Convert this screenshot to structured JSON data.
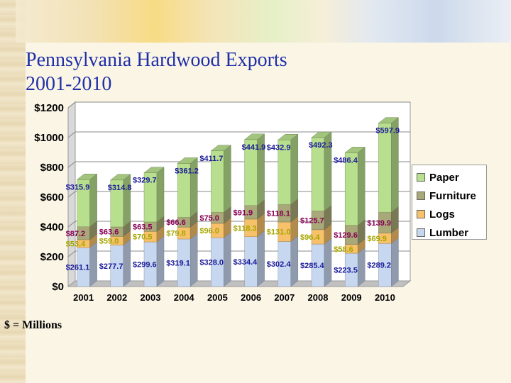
{
  "title": [
    "Pennsylvania Hardwood Exports",
    "2001-2010"
  ],
  "footnote": "$ = Millions",
  "colors": {
    "Lumber": "#c6d7ef",
    "Logs": "#f6c16a",
    "Furniture": "#a8a878",
    "Paper": "#b8df8e"
  },
  "label_colors": {
    "Lumber": "#1a1a99",
    "Logs": "#a6a600",
    "Furniture": "#880055",
    "Paper": "#1a1a99"
  },
  "chart_data": {
    "type": "bar",
    "stacked": true,
    "title": "Pennsylvania Hardwood Exports 2001-2010",
    "categories": [
      "2001",
      "2002",
      "2003",
      "2004",
      "2005",
      "2006",
      "2007",
      "2008",
      "2009",
      "2010"
    ],
    "series": [
      {
        "name": "Lumber",
        "values": [
          261.1,
          277.7,
          299.6,
          319.1,
          328.0,
          334.4,
          302.4,
          285.4,
          223.5,
          289.2
        ],
        "labels": [
          "$261.1",
          "$277.7",
          "$299.6",
          "$319.1",
          "$328.0",
          "$334.4",
          "$302.4",
          "$285.4",
          "$223.5",
          "$289.2"
        ]
      },
      {
        "name": "Logs",
        "values": [
          53.4,
          59.0,
          70.5,
          79.8,
          96.0,
          118.3,
          131.0,
          96.4,
          58.6,
          69.9
        ],
        "labels": [
          "$53.4",
          "$59.0",
          "$70.5",
          "$79.8",
          "$96.0",
          "$118.3",
          "$131.0",
          "$96.4",
          "$58.6",
          "$69.9"
        ]
      },
      {
        "name": "Furniture",
        "values": [
          87.2,
          63.6,
          63.5,
          66.6,
          75.0,
          91.9,
          118.1,
          125.7,
          129.6,
          139.9
        ],
        "labels": [
          "$87.2",
          "$63.6",
          "$63.5",
          "$66.6",
          "$75.0",
          "$91.9",
          "$118.1",
          "$125.7",
          "$129.6",
          "$139.9"
        ]
      },
      {
        "name": "Paper",
        "values": [
          315.9,
          314.8,
          329.7,
          361.2,
          411.7,
          441.9,
          432.9,
          492.3,
          486.4,
          597.9
        ],
        "labels": [
          "$315.9",
          "$314.8",
          "$329.7",
          "$361.2",
          "$411.7",
          "$441.9",
          "$432.9",
          "$492.3",
          "$486.4",
          "$597.9"
        ]
      }
    ],
    "y_ticks": [
      "$0",
      "$200",
      "$400",
      "$600",
      "$800",
      "$1000",
      "$1200"
    ],
    "ylim": [
      0,
      1200
    ],
    "legend": [
      "Paper",
      "Furniture",
      "Logs",
      "Lumber"
    ],
    "legend_position": "right",
    "grid": true,
    "three_d": true
  }
}
